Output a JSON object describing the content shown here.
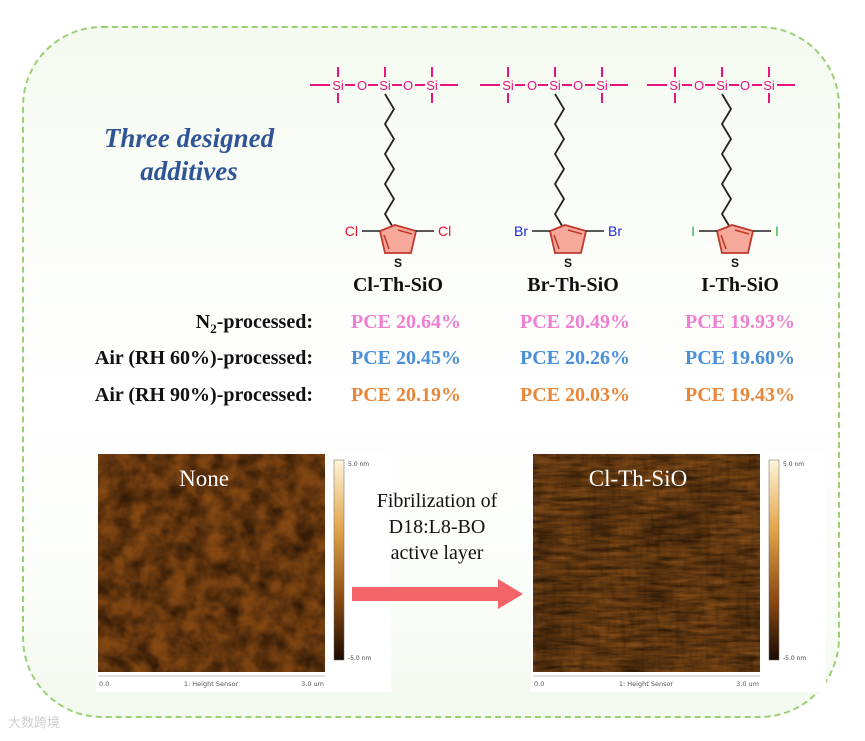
{
  "title": {
    "line1": "Three designed",
    "line2": "additives"
  },
  "chem": {
    "si": "Si",
    "o": "O",
    "s": "S"
  },
  "molecules": [
    {
      "name": "Cl-Th-SiO",
      "halogen": "Cl",
      "halogen_color": "#e8112d"
    },
    {
      "name": "Br-Th-SiO",
      "halogen": "Br",
      "halogen_color": "#1a2bd6"
    },
    {
      "name": "I-Th-SiO",
      "halogen": "I",
      "halogen_color": "#21b34a"
    }
  ],
  "conditions": [
    {
      "label_main": "N",
      "label_sub": "2",
      "label_rest": "-processed:",
      "color": "#ef7fd0",
      "values": [
        "PCE 20.64%",
        "PCE 20.49%",
        "PCE 19.93%"
      ]
    },
    {
      "label_main": "Air (RH 60%)-processed:",
      "color": "#4a8fd8",
      "values": [
        "PCE 20.45%",
        "PCE 20.26%",
        "PCE 19.60%"
      ]
    },
    {
      "label_main": "Air (RH 90%)-processed:",
      "color": "#e8863a",
      "values": [
        "PCE 20.19%",
        "PCE 20.03%",
        "PCE 19.43%"
      ]
    }
  ],
  "afm": [
    {
      "label": "None",
      "scale_top": "5.0 nm",
      "scale_bottom": "-5.0 nm",
      "axis_left": "0.0",
      "axis_mid": "1: Height Sensor",
      "axis_right": "3.0 um"
    },
    {
      "label": "Cl-Th-SiO",
      "scale_top": "5.0 nm",
      "scale_bottom": "-5.0 nm",
      "axis_left": "0.0",
      "axis_mid": "1: Height Sensor",
      "axis_right": "3.0 um"
    }
  ],
  "caption": {
    "line1": "Fibrilization of",
    "line2": "D18:L8-BO",
    "line3": "active layer"
  },
  "colors": {
    "siloxane": "#e8137f",
    "ring_fill": "#f6a99b",
    "ring_stroke": "#c0392b",
    "arrow": "#f36468",
    "title": "#2f5597"
  },
  "watermark": "大数跨境"
}
